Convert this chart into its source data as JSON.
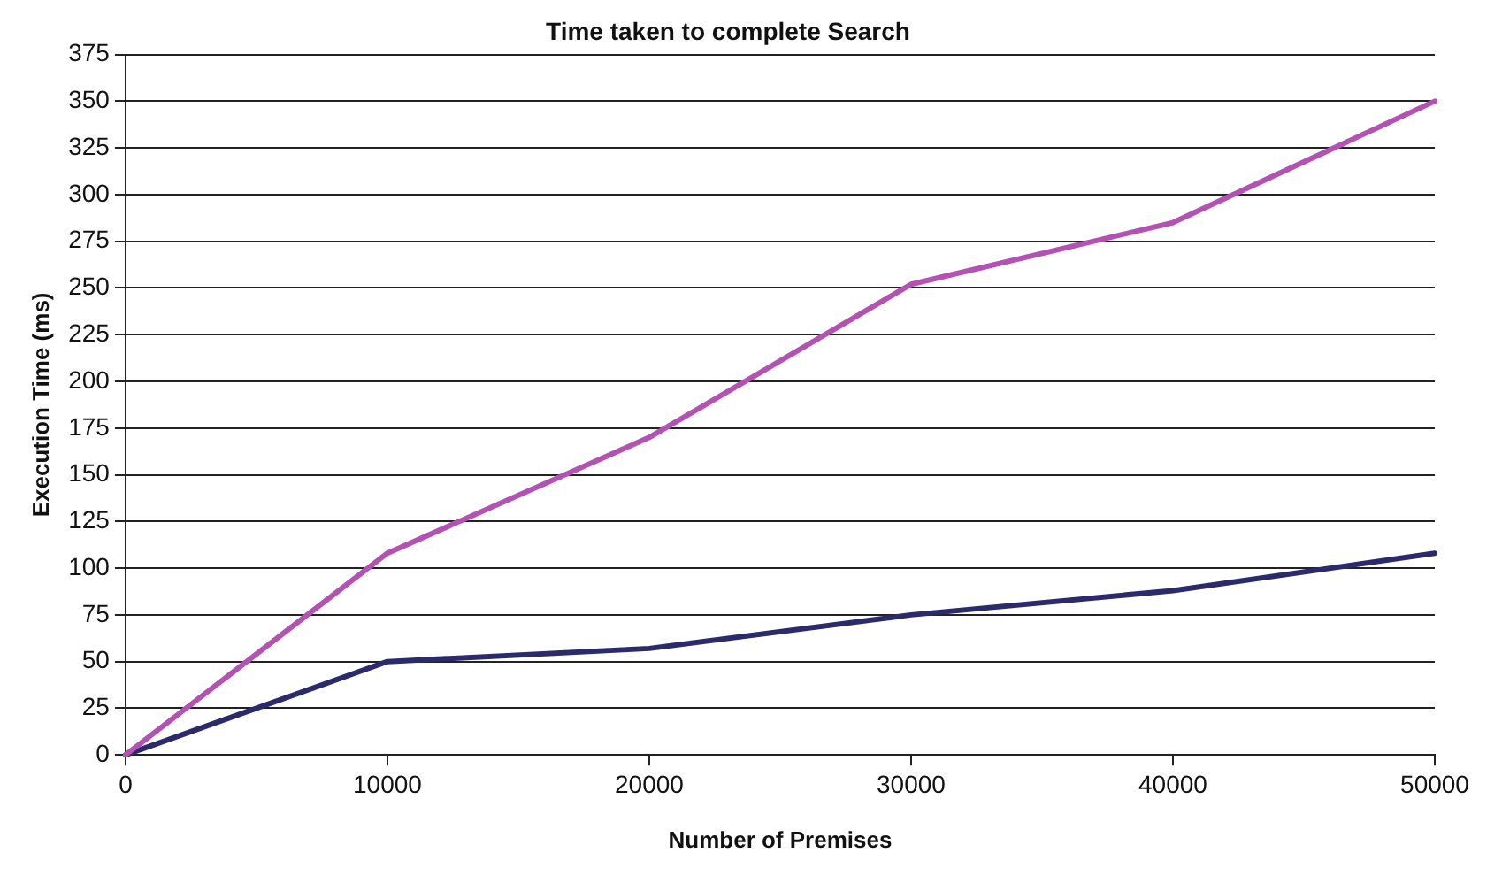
{
  "chart_data": {
    "type": "line",
    "title": "Time taken to complete Search",
    "xlabel": "Number of Premises",
    "ylabel": "Execution Time (ms)",
    "x": [
      0,
      10000,
      20000,
      30000,
      40000,
      50000
    ],
    "series": [
      {
        "color": "#b352b3",
        "values": [
          0,
          108,
          170,
          252,
          285,
          350
        ]
      },
      {
        "color": "#2b2a6b",
        "values": [
          0,
          50,
          57,
          75,
          88,
          108
        ]
      }
    ],
    "xlim": [
      0,
      50000
    ],
    "xticks": [
      0,
      10000,
      20000,
      30000,
      40000,
      50000
    ],
    "ylim": [
      0,
      375
    ],
    "yticks": [
      0,
      25,
      50,
      75,
      100,
      125,
      150,
      175,
      200,
      225,
      250,
      275,
      300,
      325,
      350,
      375
    ],
    "grid": "y",
    "legend": false,
    "marker": "none",
    "line_style": "solid"
  }
}
